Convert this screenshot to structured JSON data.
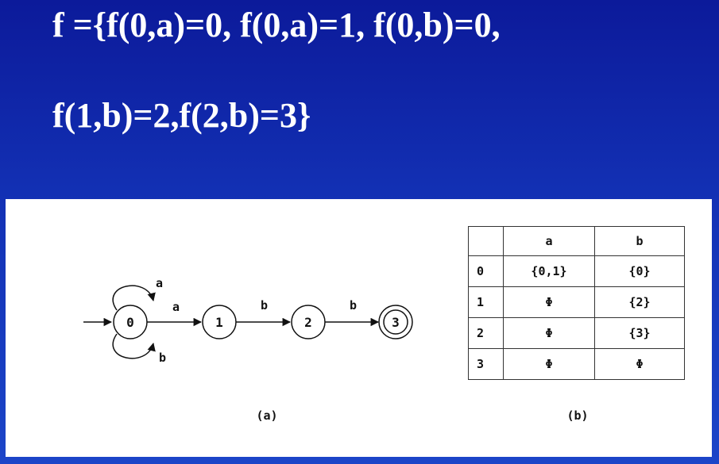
{
  "title": {
    "line1": "f ={f(0,a)=0, f(0,a)=1, f(0,b)=0,",
    "line2": "f(1,b)=2,f(2,b)=3}"
  },
  "diagram": {
    "states": [
      "0",
      "1",
      "2",
      "3"
    ],
    "final_state": "3",
    "transitions": [
      {
        "from": "0",
        "to": "0",
        "symbol": "a"
      },
      {
        "from": "0",
        "to": "0",
        "symbol": "b"
      },
      {
        "from": "0",
        "to": "1",
        "symbol": "a"
      },
      {
        "from": "1",
        "to": "2",
        "symbol": "b"
      },
      {
        "from": "2",
        "to": "3",
        "symbol": "b"
      }
    ],
    "caption": "(a)"
  },
  "table": {
    "columns": [
      "",
      "a",
      "b"
    ],
    "rows": [
      [
        "0",
        "{0,1}",
        "{0}"
      ],
      [
        "1",
        "Φ",
        "{2}"
      ],
      [
        "2",
        "Φ",
        "{3}"
      ],
      [
        "3",
        "Φ",
        "Φ"
      ]
    ],
    "caption": "(b)"
  },
  "colors": {
    "background_top": "#0c1a9a",
    "background_bottom": "#1c45c8",
    "text": "#ffffff",
    "panel": "#ffffff"
  }
}
